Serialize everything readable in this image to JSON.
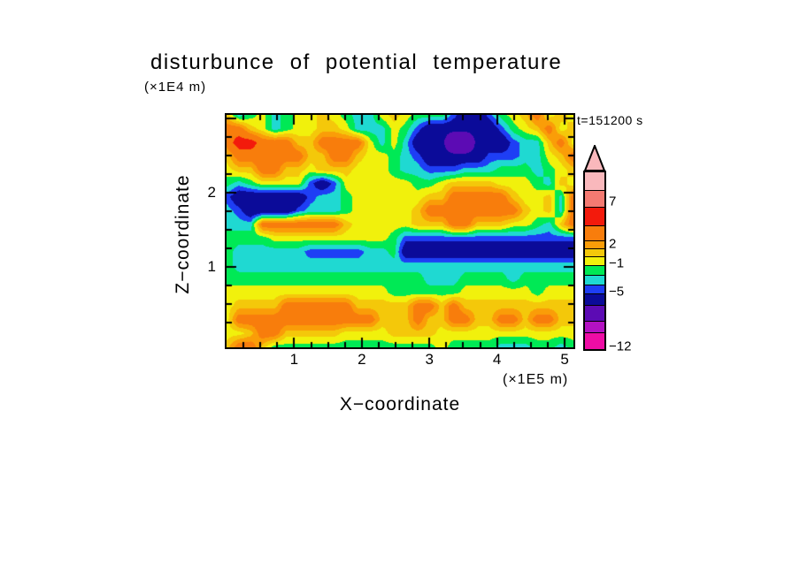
{
  "title": "disturbunce of potential temperature",
  "y_axis_unit": "(×1E4 m)",
  "x_axis_unit": "(×1E5 m)",
  "x_axis_label": "X−coordinate",
  "y_axis_label": "Z−coordinate",
  "timestamp": "t=151200 s",
  "colorbar": {
    "labels": [
      {
        "text": "7",
        "y": 228
      },
      {
        "text": "2",
        "y": 276
      },
      {
        "text": "−1",
        "y": 298
      },
      {
        "text": "−5",
        "y": 330
      },
      {
        "text": "−12",
        "y": 392
      }
    ],
    "segments": [
      {
        "color": "#f9b8bc",
        "height": 20
      },
      {
        "color": "#f47a72",
        "height": 19
      },
      {
        "color": "#f31a0c",
        "height": 21
      },
      {
        "color": "#f87d0c",
        "height": 17
      },
      {
        "color": "#fa9d08",
        "height": 9
      },
      {
        "color": "#f4c80a",
        "height": 9
      },
      {
        "color": "#f1f10c",
        "height": 10
      },
      {
        "color": "#00e955",
        "height": 11
      },
      {
        "color": "#1fd9d2",
        "height": 11
      },
      {
        "color": "#1e3ef5",
        "height": 10
      },
      {
        "color": "#0b0b99",
        "height": 13
      },
      {
        "color": "#5c0bb4",
        "height": 18
      },
      {
        "color": "#b312c2",
        "height": 13
      },
      {
        "color": "#ee0da5",
        "height": 19
      }
    ]
  },
  "chart_data": {
    "type": "heatmap",
    "title": "disturbunce of potential temperature",
    "xlabel": "X−coordinate (×1E5 m)",
    "ylabel": "Z−coordinate (×1E4 m)",
    "annotation": "t=151200 s",
    "x_range": [
      0,
      5.13
    ],
    "z_range": [
      -0.08,
      3.05
    ],
    "x_major_ticks": [
      1,
      2,
      3,
      4,
      5
    ],
    "x_tick_labels": [
      "1",
      "2",
      "3",
      "4",
      "5"
    ],
    "z_tick_labels": [
      {
        "text": "2",
        "value": 2
      },
      {
        "text": "1",
        "value": 1
      }
    ],
    "minor_tick_step": 0.25,
    "grid_lines": false,
    "legend_position": "right-colorbar",
    "colorbar_values": [
      7,
      2,
      -1,
      -5,
      -12
    ],
    "levels": {
      "thresholds": [
        -10,
        -8,
        -5,
        -3,
        -2,
        -1,
        0,
        1,
        2,
        3,
        5,
        7,
        8
      ],
      "colors": [
        "#ee0da5",
        "#b312c2",
        "#5c0bb4",
        "#0b0b99",
        "#1e3ef5",
        "#1fd9d2",
        "#00e955",
        "#f1f10c",
        "#f4c80a",
        "#fa9d08",
        "#f87d0c",
        "#f31a0c",
        "#f47a72",
        "#f9b8bc"
      ]
    },
    "grid": {
      "cols": 30,
      "rows": 18,
      "values": [
        [
          1.5,
          -1.5,
          -0.5,
          0.5,
          -1.5,
          -0.5,
          0.5,
          0.5,
          1.5,
          0.5,
          -0.5,
          -1.5,
          -1.5,
          0.5,
          1.5,
          0.5,
          -0.5,
          -0.5,
          -0.5,
          -2.5,
          -4.5,
          -4.5,
          -2.5,
          -0.5,
          0.5,
          1.5,
          4,
          0.5,
          1.5,
          0.5
        ],
        [
          4,
          4,
          1.5,
          0.5,
          -1.5,
          -0.5,
          0.5,
          0.5,
          1.5,
          1.5,
          0.5,
          -1.5,
          -1.5,
          -1.5,
          0.5,
          -0.5,
          -2.5,
          -4.5,
          -4.5,
          -4.5,
          -4.5,
          -4.5,
          -4.5,
          -2.5,
          -0.5,
          0.5,
          1.5,
          4,
          0.5,
          1.5
        ],
        [
          4,
          6,
          6,
          4,
          4,
          4,
          1.5,
          1.5,
          4,
          4,
          4,
          4,
          0.5,
          -1.5,
          0.5,
          -1.5,
          -4.5,
          -4.5,
          -4.5,
          -7,
          -7,
          -4.5,
          -4.5,
          -4.5,
          -2.5,
          -1.5,
          -1.5,
          1.5,
          4,
          0.5
        ],
        [
          1.5,
          4,
          4,
          4,
          4,
          4,
          4,
          1.5,
          1.5,
          4,
          4,
          1.5,
          0.5,
          0.5,
          -0.5,
          -1.5,
          -2.5,
          -4.5,
          -4.5,
          -4.5,
          -4.5,
          -4.5,
          -2.5,
          -2.5,
          -2.5,
          -1.5,
          -1.5,
          0.5,
          1.5,
          4
        ],
        [
          0.5,
          1.5,
          1.5,
          4,
          4,
          1.5,
          1.5,
          0.5,
          1.5,
          1.5,
          1.5,
          0.5,
          0.5,
          0.5,
          -0.5,
          -1.5,
          -1.5,
          -2.5,
          -2.5,
          -2.5,
          -1.5,
          -1.5,
          -1.5,
          -0.5,
          -0.5,
          -0.5,
          -1.5,
          -0.5,
          0.5,
          1.5
        ],
        [
          -0.5,
          -1.5,
          -0.5,
          0.5,
          0.5,
          0.5,
          0.5,
          -2.5,
          -4.5,
          -2.5,
          0.5,
          0.5,
          0.5,
          0.5,
          0.5,
          0.5,
          -0.5,
          -0.5,
          0.5,
          1.5,
          1.5,
          1.5,
          1.5,
          0.5,
          0.5,
          0.5,
          -0.5,
          -1.5,
          1.5,
          0.5
        ],
        [
          -2.5,
          -4.5,
          -4.5,
          -4.5,
          -4.5,
          -4.5,
          -4.5,
          -2.5,
          -1.5,
          -1.5,
          -0.5,
          0.5,
          0.5,
          0.5,
          0.5,
          0.5,
          0.5,
          1.5,
          1.5,
          4,
          4,
          4,
          4,
          4,
          1.5,
          0.5,
          0.5,
          1.5,
          -1.5,
          4
        ],
        [
          -1.5,
          -2.5,
          -4.5,
          -4.5,
          -4.5,
          -4.5,
          -2.5,
          -1.5,
          -1.5,
          -1.5,
          -0.5,
          0.5,
          0.5,
          0.5,
          0.5,
          0.5,
          1.5,
          4,
          4,
          4,
          4,
          4,
          4,
          4,
          4,
          1.5,
          0.5,
          1.5,
          -1.5,
          4
        ],
        [
          -1.5,
          -1.5,
          -1.5,
          4,
          4,
          4,
          4,
          4,
          4,
          4,
          1.5,
          0.5,
          0.5,
          0.5,
          0.5,
          0.5,
          1.5,
          1.5,
          1.5,
          4,
          4,
          1.5,
          1.5,
          1.5,
          0.5,
          0.5,
          -0.5,
          -1.5,
          1.5,
          4
        ],
        [
          -0.5,
          -0.5,
          -0.5,
          -0.5,
          0.5,
          0.5,
          0.5,
          0.5,
          0.5,
          0.5,
          0.5,
          0.5,
          0.5,
          0.5,
          -0.5,
          -2.5,
          -2.5,
          -2.5,
          -2.5,
          -2.5,
          -2.5,
          -2.5,
          -2.5,
          -2.5,
          -2.5,
          -2.5,
          -2.5,
          -2.5,
          -2.5,
          -2.5
        ],
        [
          -0.5,
          -1.5,
          -1.5,
          -1.5,
          -1.5,
          -1.5,
          -1.5,
          -2.5,
          -2.5,
          -2.5,
          -2.5,
          -2.5,
          -1.5,
          -1.5,
          -0.5,
          -4.5,
          -4.5,
          -4.5,
          -4.5,
          -4.5,
          -4.5,
          -4.5,
          -4.5,
          -4.5,
          -4.5,
          -4.5,
          -4.5,
          -4.5,
          -4.5,
          -4.5
        ],
        [
          -0.5,
          -1.5,
          -1.5,
          -1.5,
          -1.5,
          -1.5,
          -1.5,
          -1.5,
          -1.5,
          -1.5,
          -1.5,
          -1.5,
          -1.5,
          -1.5,
          -1.5,
          -1.5,
          -1.5,
          -1.5,
          -1.5,
          -1.5,
          -1.5,
          -1.5,
          -1.5,
          -1.5,
          -1.5,
          -1.5,
          -1.5,
          -1.5,
          -1.5,
          -1.5
        ],
        [
          -0.5,
          -0.5,
          -0.5,
          -0.5,
          -0.5,
          -0.5,
          -0.5,
          -0.5,
          -0.5,
          -0.5,
          -0.5,
          -0.5,
          -0.5,
          -0.5,
          -0.5,
          -0.5,
          -0.5,
          -1.5,
          -1.5,
          -1.5,
          -0.5,
          -0.5,
          -0.5,
          -0.5,
          -1.5,
          -0.5,
          -0.5,
          -0.5,
          -0.5,
          -0.5
        ],
        [
          0.5,
          0.5,
          0.5,
          0.5,
          0.5,
          0.5,
          0.5,
          0.5,
          0.5,
          0.5,
          0.5,
          0.5,
          0.5,
          0.5,
          -0.5,
          -0.5,
          -0.5,
          -0.5,
          -0.5,
          -0.5,
          0.5,
          0.5,
          0.5,
          0.5,
          0.5,
          0.5,
          -0.5,
          0.5,
          0.5,
          0.5
        ],
        [
          0.5,
          1.5,
          1.5,
          1.5,
          1.5,
          4,
          4,
          4,
          4,
          4,
          4,
          1.5,
          1.5,
          1.5,
          1.5,
          1.5,
          4,
          4,
          1.5,
          4,
          1.5,
          1.5,
          1.5,
          1.5,
          1.5,
          1.5,
          1.5,
          1.5,
          1.5,
          1.5
        ],
        [
          0.5,
          4,
          4,
          4,
          4,
          4,
          4,
          4,
          4,
          4,
          4,
          4,
          4,
          1.5,
          1.5,
          1.5,
          4,
          1.5,
          1.5,
          4,
          4,
          1.5,
          1.5,
          4,
          4,
          1.5,
          4,
          4,
          1.5,
          1.5
        ],
        [
          0.5,
          0.5,
          1.5,
          4,
          4,
          1.5,
          1.5,
          1.5,
          1.5,
          1.5,
          0.5,
          0.5,
          0.5,
          0.5,
          1.5,
          1.5,
          1.5,
          1.5,
          0.5,
          0.5,
          0.5,
          0.5,
          0.5,
          0.5,
          0.5,
          0.5,
          0.5,
          0.5,
          0.5,
          0.5
        ],
        [
          1.5,
          4,
          4,
          1.5,
          -0.5,
          -0.5,
          -0.5,
          -0.5,
          -0.5,
          -0.5,
          -0.5,
          -0.5,
          -0.5,
          -0.5,
          -0.5,
          -0.5,
          -0.5,
          -0.5,
          0.5,
          -0.5,
          -0.5,
          -0.5,
          -0.5,
          -1.5,
          -1.5,
          -1.5,
          -0.5,
          -0.5,
          -1.5,
          -0.5
        ]
      ]
    }
  }
}
